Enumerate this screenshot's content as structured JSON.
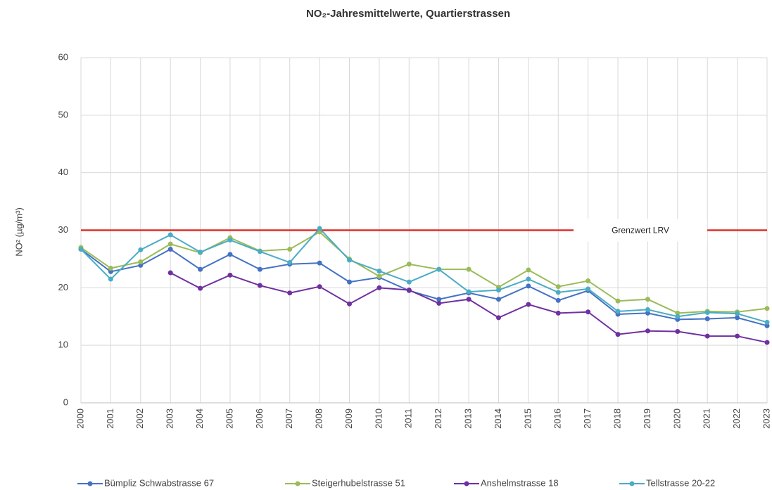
{
  "chart_data": {
    "type": "line",
    "title": "NO₂-Jahresmittelwerte, Quartierstrassen",
    "y_label": "NO² (µg/m³)",
    "categories": [
      "2000",
      "2001",
      "2002",
      "2003",
      "2004",
      "2005",
      "2006",
      "2007",
      "2008",
      "2009",
      "2010",
      "2011",
      "2012",
      "2013",
      "2014",
      "2015",
      "2016",
      "2017",
      "2018",
      "2019",
      "2020",
      "2021",
      "2022",
      "2023"
    ],
    "series": [
      {
        "name": "Bümpliz Schwabstrasse 67",
        "color": "#4472c4",
        "values": [
          26.7,
          22.8,
          23.9,
          26.7,
          23.2,
          25.8,
          23.2,
          24.1,
          24.3,
          21.0,
          21.8,
          19.5,
          18.0,
          19.1,
          18.0,
          20.3,
          17.8,
          19.5,
          15.4,
          15.6,
          14.5,
          14.6,
          14.8,
          13.4
        ]
      },
      {
        "name": "Steigerhubelstrasse 51",
        "color": "#9bbb59",
        "values": [
          27.0,
          23.4,
          24.5,
          27.6,
          26.1,
          28.7,
          26.4,
          26.7,
          29.7,
          25.0,
          22.0,
          24.1,
          23.2,
          23.2,
          20.1,
          23.1,
          20.2,
          21.2,
          17.7,
          18.0,
          15.6,
          15.9,
          15.8,
          16.4
        ]
      },
      {
        "name": "Anshelmstrasse 18",
        "color": "#7030a0",
        "values": [
          null,
          null,
          null,
          22.6,
          19.9,
          22.2,
          20.4,
          19.1,
          20.2,
          17.2,
          20.0,
          19.6,
          17.3,
          18.0,
          14.8,
          17.1,
          15.6,
          15.8,
          11.9,
          12.5,
          12.4,
          11.6,
          11.6,
          10.5
        ]
      },
      {
        "name": "Tellstrasse 20-22",
        "color": "#4bacc6",
        "values": [
          26.7,
          21.5,
          26.6,
          29.2,
          26.2,
          28.3,
          26.3,
          24.4,
          30.3,
          24.8,
          22.9,
          21.0,
          23.2,
          19.3,
          19.6,
          21.5,
          19.2,
          19.8,
          15.9,
          16.2,
          15.0,
          15.7,
          15.5,
          14.0
        ]
      }
    ],
    "threshold": {
      "value": 30,
      "label": "Grenzwert LRV",
      "color": "#e0302a"
    },
    "ylim": [
      0,
      60
    ],
    "yticks": [
      0,
      10,
      20,
      30,
      40,
      50,
      60
    ],
    "grid": true,
    "legend": "bottom"
  }
}
